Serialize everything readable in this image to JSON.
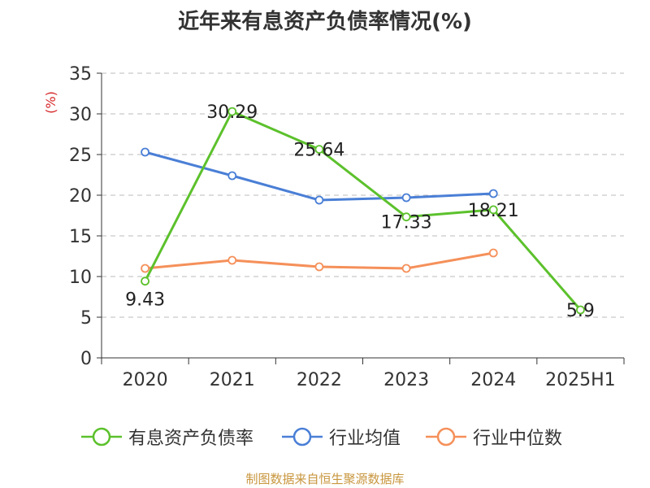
{
  "chart_data": {
    "type": "line",
    "title": "近年来有息资产负债率情况(%)",
    "ylabel": "(%)",
    "xlabel": "",
    "categories": [
      "2020",
      "2021",
      "2022",
      "2023",
      "2024",
      "2025H1"
    ],
    "ylim": [
      0,
      35
    ],
    "yticks": [
      "0",
      "5",
      "10",
      "15",
      "20",
      "25",
      "30",
      "35"
    ],
    "grid": true,
    "legend_position": "bottom",
    "series": [
      {
        "name": "有息资产负债率",
        "color": "#5cc12c",
        "values": [
          9.43,
          30.29,
          25.64,
          17.33,
          18.21,
          5.9
        ],
        "labels": [
          "9.43",
          "30.29",
          "25.64",
          "17.33",
          "18.21",
          "5.9"
        ]
      },
      {
        "name": "行业均值",
        "color": "#4a7fd6",
        "values": [
          25.3,
          22.4,
          19.4,
          19.7,
          20.2,
          null
        ]
      },
      {
        "name": "行业中位数",
        "color": "#f5905a",
        "values": [
          11.0,
          12.0,
          11.2,
          11.0,
          12.9,
          null
        ]
      }
    ]
  },
  "source": "制图数据来自恒生聚源数据库"
}
